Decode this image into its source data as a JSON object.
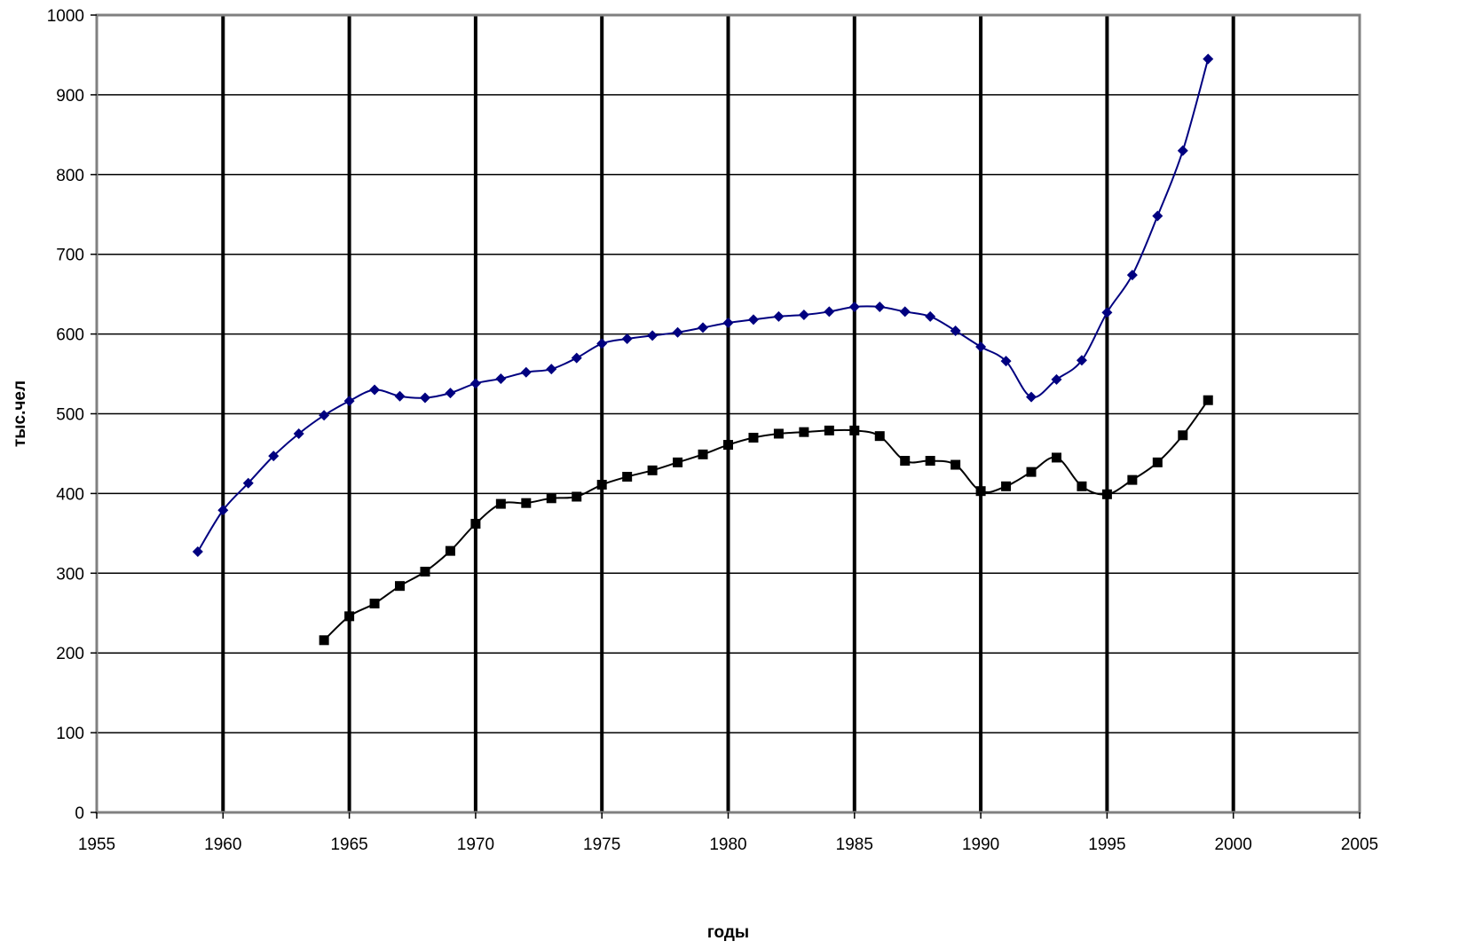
{
  "chart_data": {
    "type": "line",
    "title": "",
    "xlabel": "годы",
    "ylabel": "тыс.чел",
    "xlim": [
      1955,
      2005
    ],
    "ylim": [
      0,
      1000
    ],
    "x_ticks": [
      1955,
      1960,
      1965,
      1970,
      1975,
      1980,
      1985,
      1990,
      1995,
      2000,
      2005
    ],
    "y_ticks": [
      0,
      100,
      200,
      300,
      400,
      500,
      600,
      700,
      800,
      900,
      1000
    ],
    "grid": {
      "horizontal": true,
      "vertical": true,
      "vertical_style": "bold"
    },
    "legend": "none",
    "series": [
      {
        "marker": "diamond",
        "color": "#000080",
        "x": [
          1959,
          1960,
          1961,
          1962,
          1963,
          1964,
          1965,
          1966,
          1967,
          1968,
          1969,
          1970,
          1971,
          1972,
          1973,
          1974,
          1975,
          1976,
          1977,
          1978,
          1979,
          1980,
          1981,
          1982,
          1983,
          1984,
          1985,
          1986,
          1987,
          1988,
          1989,
          1990,
          1991,
          1992,
          1993,
          1994,
          1995,
          1996,
          1997,
          1998,
          1999
        ],
        "y": [
          327,
          379,
          413,
          447,
          475,
          498,
          516,
          530,
          522,
          520,
          526,
          538,
          544,
          552,
          556,
          570,
          588,
          594,
          598,
          602,
          608,
          614,
          618,
          622,
          624,
          628,
          634,
          634,
          628,
          622,
          604,
          584,
          566,
          521,
          543,
          567,
          627,
          674,
          748,
          830,
          945
        ]
      },
      {
        "marker": "square",
        "color": "#000000",
        "x": [
          1964,
          1965,
          1966,
          1967,
          1968,
          1969,
          1970,
          1971,
          1972,
          1973,
          1974,
          1975,
          1976,
          1977,
          1978,
          1979,
          1980,
          1981,
          1982,
          1983,
          1984,
          1985,
          1986,
          1987,
          1988,
          1989,
          1990,
          1991,
          1992,
          1993,
          1994,
          1995,
          1996,
          1997,
          1998,
          1999
        ],
        "y": [
          216,
          246,
          262,
          284,
          302,
          328,
          362,
          387,
          388,
          394,
          396,
          411,
          421,
          429,
          439,
          449,
          461,
          470,
          475,
          477,
          479,
          479,
          472,
          441,
          441,
          436,
          403,
          409,
          427,
          445,
          409,
          399,
          417,
          439,
          473,
          517
        ]
      }
    ]
  }
}
